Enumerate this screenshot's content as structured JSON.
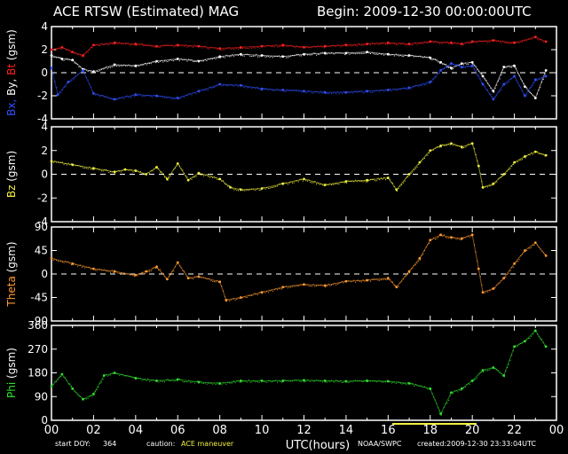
{
  "header": {
    "title": "ACE RTSW (Estimated) MAG",
    "begin": "Begin: 2009-12-30 00:00:00UTC"
  },
  "footer": {
    "start_doy_label": "start DOY:",
    "start_doy_value": "364",
    "caution_label": "caution:",
    "caution_value": "ACE maneuver",
    "source": "NOAA/SWPC",
    "created": "created:2009-12-30 23:33:04UTC"
  },
  "colors": {
    "bt": "#ff2020",
    "bx": "#3050ff",
    "by": "#ffffff",
    "bz": "#f0f040",
    "theta": "#ff9a30",
    "phi": "#30e030",
    "axes": "#ffffff",
    "caution_bar": "#f0f040"
  },
  "chart_data": {
    "type": "scatter",
    "xlabel": "UTC(hours)",
    "xlim": [
      0,
      24
    ],
    "x_ticks": [
      "00",
      "02",
      "04",
      "06",
      "08",
      "10",
      "12",
      "14",
      "16",
      "18",
      "20",
      "22",
      "00"
    ],
    "caution_interval_hours": [
      16.2,
      20.2
    ],
    "panels": [
      {
        "ylabel_parts": [
          "Bx,",
          " By,",
          " Bt",
          " (gsm)"
        ],
        "ylim": [
          -4,
          4
        ],
        "yticks": [
          4,
          2,
          0,
          -2,
          -4
        ],
        "zero_line": true,
        "series": [
          {
            "name": "Bt",
            "points": [
              [
                0,
                2.0
              ],
              [
                0.5,
                2.2
              ],
              [
                1,
                1.8
              ],
              [
                1.5,
                1.5
              ],
              [
                2,
                2.4
              ],
              [
                3,
                2.6
              ],
              [
                4,
                2.5
              ],
              [
                5,
                2.3
              ],
              [
                6,
                2.4
              ],
              [
                7,
                2.3
              ],
              [
                8,
                2.1
              ],
              [
                9,
                2.2
              ],
              [
                10,
                2.3
              ],
              [
                11,
                2.4
              ],
              [
                12,
                2.2
              ],
              [
                13,
                2.3
              ],
              [
                14,
                2.4
              ],
              [
                15,
                2.5
              ],
              [
                16,
                2.6
              ],
              [
                17,
                2.5
              ],
              [
                18,
                2.7
              ],
              [
                19,
                2.6
              ],
              [
                19.5,
                2.5
              ],
              [
                20,
                2.7
              ],
              [
                21,
                2.8
              ],
              [
                22,
                2.6
              ],
              [
                23,
                3.1
              ],
              [
                23.5,
                2.7
              ]
            ]
          },
          {
            "name": "By",
            "points": [
              [
                0,
                1.5
              ],
              [
                0.5,
                1.2
              ],
              [
                1,
                1.1
              ],
              [
                1.5,
                0.3
              ],
              [
                2,
                0.1
              ],
              [
                3,
                0.7
              ],
              [
                4,
                0.6
              ],
              [
                5,
                1.0
              ],
              [
                6,
                1.2
              ],
              [
                7,
                1.0
              ],
              [
                8,
                1.4
              ],
              [
                9,
                1.6
              ],
              [
                10,
                1.5
              ],
              [
                11,
                1.4
              ],
              [
                12,
                1.6
              ],
              [
                13,
                1.7
              ],
              [
                14,
                1.7
              ],
              [
                15,
                1.8
              ],
              [
                16,
                1.6
              ],
              [
                17,
                1.5
              ],
              [
                18,
                1.3
              ],
              [
                18.5,
                0.9
              ],
              [
                19,
                0.4
              ],
              [
                19.5,
                0.8
              ],
              [
                20,
                0.9
              ],
              [
                20.5,
                -0.3
              ],
              [
                21,
                -1.6
              ],
              [
                21.5,
                0.5
              ],
              [
                22,
                0.6
              ],
              [
                22.5,
                -1.2
              ],
              [
                23,
                -2.2
              ],
              [
                23.5,
                0.2
              ]
            ]
          },
          {
            "name": "Bx",
            "points": [
              [
                0,
                0.4
              ],
              [
                0.3,
                -1.9
              ],
              [
                0.8,
                -0.8
              ],
              [
                1.5,
                0.2
              ],
              [
                2,
                -1.8
              ],
              [
                3,
                -2.3
              ],
              [
                4,
                -1.9
              ],
              [
                5,
                -2.0
              ],
              [
                6,
                -2.2
              ],
              [
                7,
                -1.6
              ],
              [
                8,
                -1.0
              ],
              [
                9,
                -1.1
              ],
              [
                10,
                -1.4
              ],
              [
                11,
                -1.5
              ],
              [
                12,
                -1.6
              ],
              [
                13,
                -1.7
              ],
              [
                14,
                -1.7
              ],
              [
                15,
                -1.6
              ],
              [
                16,
                -1.5
              ],
              [
                17,
                -1.3
              ],
              [
                18,
                -0.8
              ],
              [
                18.5,
                0.2
              ],
              [
                19,
                0.8
              ],
              [
                19.5,
                0.5
              ],
              [
                20,
                0.6
              ],
              [
                20.5,
                -1.0
              ],
              [
                21,
                -2.3
              ],
              [
                21.5,
                -1.0
              ],
              [
                22,
                -0.3
              ],
              [
                22.5,
                -2.0
              ],
              [
                23,
                -0.6
              ],
              [
                23.5,
                -0.3
              ]
            ]
          }
        ]
      },
      {
        "ylabel": "Bz (gsm)",
        "ylim": [
          -4,
          4
        ],
        "yticks": [
          4,
          2,
          0,
          -2,
          -4
        ],
        "zero_line": true,
        "series": [
          {
            "name": "Bz",
            "points": [
              [
                0,
                1.1
              ],
              [
                1,
                0.8
              ],
              [
                2,
                0.5
              ],
              [
                3,
                0.2
              ],
              [
                3.5,
                0.4
              ],
              [
                4,
                0.3
              ],
              [
                4.5,
                0.0
              ],
              [
                5,
                0.6
              ],
              [
                5.5,
                -0.4
              ],
              [
                6,
                0.9
              ],
              [
                6.5,
                -0.5
              ],
              [
                7,
                0.1
              ],
              [
                8,
                -0.4
              ],
              [
                8.5,
                -1.1
              ],
              [
                9,
                -1.3
              ],
              [
                10,
                -1.2
              ],
              [
                11,
                -0.8
              ],
              [
                12,
                -0.4
              ],
              [
                13,
                -0.9
              ],
              [
                14,
                -0.6
              ],
              [
                15,
                -0.5
              ],
              [
                16,
                -0.3
              ],
              [
                16.4,
                -1.3
              ],
              [
                17,
                0.0
              ],
              [
                17.5,
                1.0
              ],
              [
                18,
                2.0
              ],
              [
                18.5,
                2.4
              ],
              [
                19,
                2.6
              ],
              [
                19.5,
                2.3
              ],
              [
                20,
                2.6
              ],
              [
                20.3,
                0.7
              ],
              [
                20.5,
                -1.1
              ],
              [
                21,
                -0.8
              ],
              [
                21.5,
                0.0
              ],
              [
                22,
                1.0
              ],
              [
                22.5,
                1.5
              ],
              [
                23,
                1.9
              ],
              [
                23.5,
                1.6
              ]
            ]
          }
        ]
      },
      {
        "ylabel": "Theta (gsm)",
        "ylim": [
          -90,
          90
        ],
        "yticks": [
          90,
          45,
          0,
          -45,
          -90
        ],
        "zero_line": true,
        "series": [
          {
            "name": "Theta",
            "points": [
              [
                0,
                30
              ],
              [
                1,
                20
              ],
              [
                2,
                10
              ],
              [
                3,
                5
              ],
              [
                4,
                -2
              ],
              [
                4.5,
                5
              ],
              [
                5,
                14
              ],
              [
                5.5,
                -10
              ],
              [
                6,
                22
              ],
              [
                6.5,
                -8
              ],
              [
                7,
                -5
              ],
              [
                8,
                -15
              ],
              [
                8.3,
                -50
              ],
              [
                9,
                -45
              ],
              [
                10,
                -35
              ],
              [
                11,
                -25
              ],
              [
                12,
                -20
              ],
              [
                13,
                -22
              ],
              [
                14,
                -14
              ],
              [
                15,
                -12
              ],
              [
                16,
                -8
              ],
              [
                16.4,
                -25
              ],
              [
                17,
                5
              ],
              [
                17.5,
                30
              ],
              [
                18,
                65
              ],
              [
                18.5,
                75
              ],
              [
                19,
                70
              ],
              [
                19.5,
                68
              ],
              [
                20,
                75
              ],
              [
                20.3,
                10
              ],
              [
                20.5,
                -35
              ],
              [
                21,
                -28
              ],
              [
                21.5,
                -8
              ],
              [
                22,
                20
              ],
              [
                22.5,
                45
              ],
              [
                23,
                60
              ],
              [
                23.5,
                35
              ]
            ]
          }
        ]
      },
      {
        "ylabel": "Phi (gsm)",
        "ylim": [
          0,
          360
        ],
        "yticks": [
          360,
          270,
          180,
          90,
          0
        ],
        "zero_line": false,
        "series": [
          {
            "name": "Phi",
            "points": [
              [
                0,
                130
              ],
              [
                0.5,
                175
              ],
              [
                1,
                120
              ],
              [
                1.5,
                80
              ],
              [
                2,
                100
              ],
              [
                2.5,
                170
              ],
              [
                3,
                180
              ],
              [
                4,
                160
              ],
              [
                5,
                150
              ],
              [
                6,
                155
              ],
              [
                7,
                145
              ],
              [
                8,
                140
              ],
              [
                9,
                150
              ],
              [
                10,
                150
              ],
              [
                11,
                150
              ],
              [
                12,
                152
              ],
              [
                13,
                150
              ],
              [
                14,
                148
              ],
              [
                15,
                150
              ],
              [
                16,
                148
              ],
              [
                17,
                140
              ],
              [
                18,
                120
              ],
              [
                18.5,
                25
              ],
              [
                19,
                105
              ],
              [
                19.5,
                120
              ],
              [
                20,
                150
              ],
              [
                20.5,
                190
              ],
              [
                21,
                200
              ],
              [
                21.5,
                170
              ],
              [
                22,
                280
              ],
              [
                22.5,
                300
              ],
              [
                23,
                340
              ],
              [
                23.5,
                280
              ]
            ]
          }
        ]
      }
    ]
  }
}
